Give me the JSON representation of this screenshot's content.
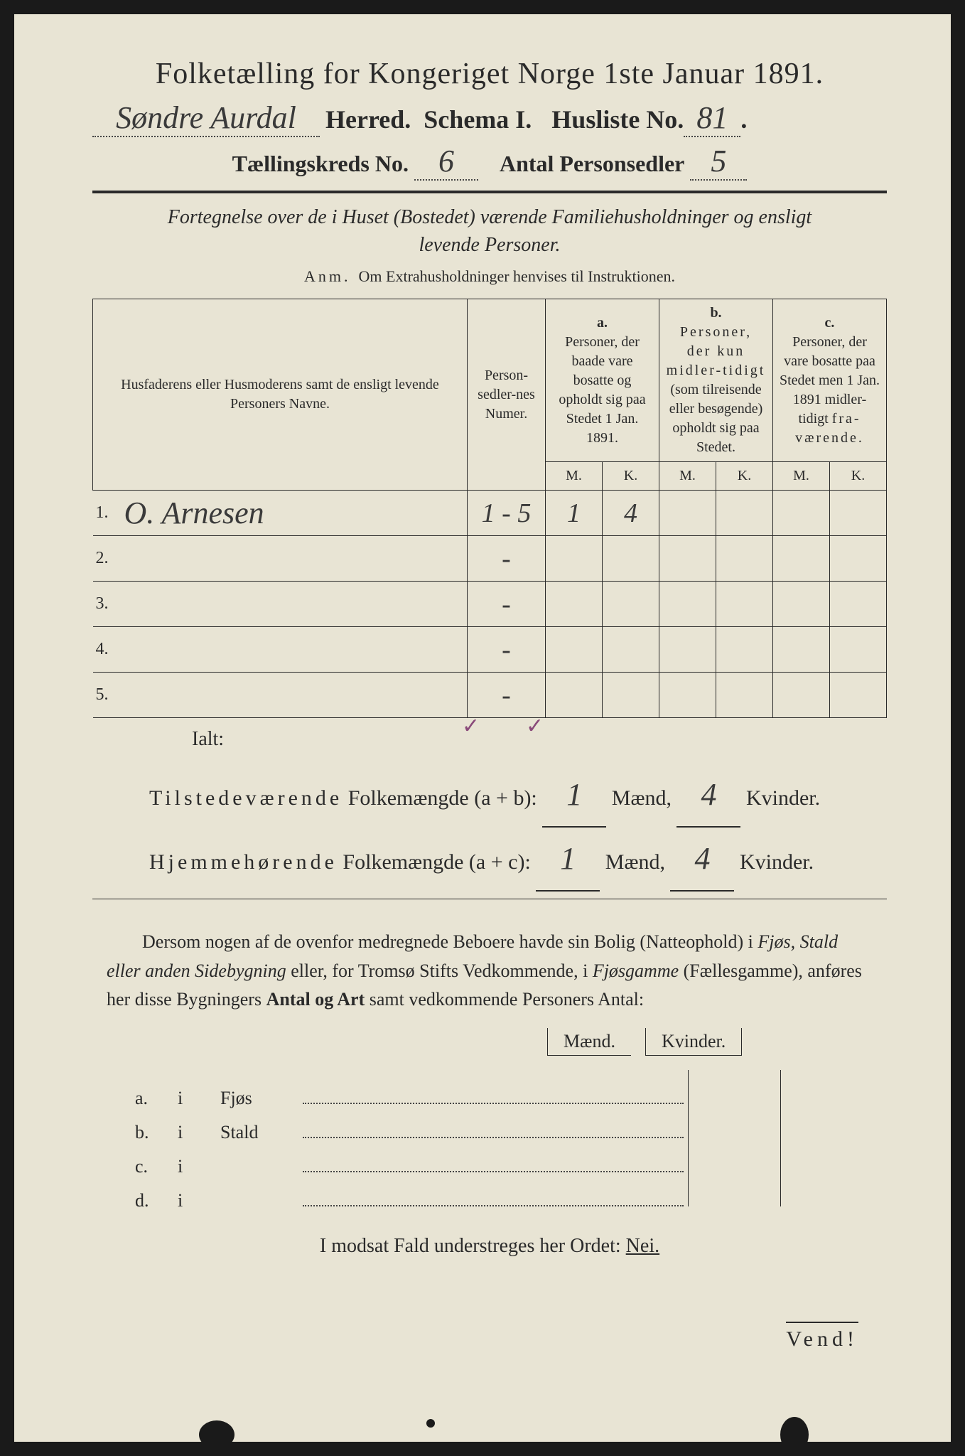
{
  "colors": {
    "paper": "#e8e4d4",
    "ink": "#2a2a2a",
    "handwriting": "#3a3a3a",
    "purple_mark": "#8a4a7a",
    "background": "#1a1a1a"
  },
  "title": "Folketælling for Kongeriget Norge 1ste Januar 1891.",
  "header": {
    "herred_handwritten": "Søndre Aurdal",
    "herred_label": "Herred.",
    "schema_label": "Schema I.",
    "husliste_label": "Husliste No.",
    "husliste_no": "81",
    "kreds_label": "Tællingskreds No.",
    "kreds_no": "6",
    "antal_label": "Antal Personsedler",
    "antal_no": "5"
  },
  "subtitle": "Fortegnelse over de i Huset (Bostedet) værende Familiehusholdninger og ensligt levende Personer.",
  "anm": {
    "prefix": "Anm.",
    "text": "Om Extrahusholdninger henvises til Instruktionen."
  },
  "table": {
    "col_name": "Husfaderens eller Husmoderens samt de ensligt levende Personers Navne.",
    "col_num": "Person-sedler-nes Numer.",
    "col_a_label": "a.",
    "col_a": "Personer, der baade vare bosatte og opholdt sig paa Stedet 1 Jan. 1891.",
    "col_b_label": "b.",
    "col_b": "Personer, der kun midlertidigt (som tilreisende eller besøgende) opholdt sig paa Stedet.",
    "col_c_label": "c.",
    "col_c": "Personer, der vare bosatte paa Stedet men 1 Jan. 1891 midlertidigt fraværende.",
    "m": "M.",
    "k": "K.",
    "rows": [
      {
        "n": "1.",
        "name": "O. Arnesen",
        "num": "1 - 5",
        "a_m": "1",
        "a_k": "4",
        "b_m": "",
        "b_k": "",
        "c_m": "",
        "c_k": ""
      },
      {
        "n": "2.",
        "name": "",
        "num": "-",
        "a_m": "",
        "a_k": "",
        "b_m": "",
        "b_k": "",
        "c_m": "",
        "c_k": ""
      },
      {
        "n": "3.",
        "name": "",
        "num": "-",
        "a_m": "",
        "a_k": "",
        "b_m": "",
        "b_k": "",
        "c_m": "",
        "c_k": ""
      },
      {
        "n": "4.",
        "name": "",
        "num": "-",
        "a_m": "",
        "a_k": "",
        "b_m": "",
        "b_k": "",
        "c_m": "",
        "c_k": ""
      },
      {
        "n": "5.",
        "name": "",
        "num": "-",
        "a_m": "",
        "a_k": "",
        "b_m": "",
        "b_k": "",
        "c_m": "",
        "c_k": ""
      }
    ]
  },
  "ialt": "Ialt:",
  "totals": {
    "line1_label": "Tilstedeværende",
    "line1_rest": "Folkemængde (a + b):",
    "line2_label": "Hjemmehørende",
    "line2_rest": "Folkemængde (a + c):",
    "maend": "Mænd,",
    "kvinder": "Kvinder.",
    "v1_m": "1",
    "v1_k": "4",
    "v2_m": "1",
    "v2_k": "4"
  },
  "para": "Dersom nogen af de ovenfor medregnede Beboere havde sin Bolig (Natteophold) i Fjøs, Stald eller anden Sidebygning eller, for Tromsø Stifts Vedkommende, i Fjøsgamme (Fællesgamme), anføres her disse Bygningers Antal og Art samt vedkommende Personers Antal:",
  "side": {
    "maend": "Mænd.",
    "kvinder": "Kvinder.",
    "rows": [
      {
        "l": "a.",
        "i": "i",
        "t": "Fjøs"
      },
      {
        "l": "b.",
        "i": "i",
        "t": "Stald"
      },
      {
        "l": "c.",
        "i": "i",
        "t": ""
      },
      {
        "l": "d.",
        "i": "i",
        "t": ""
      }
    ]
  },
  "nei_line": {
    "text": "I modsat Fald understreges her Ordet:",
    "nei": "Nei."
  },
  "vend": "Vend!"
}
